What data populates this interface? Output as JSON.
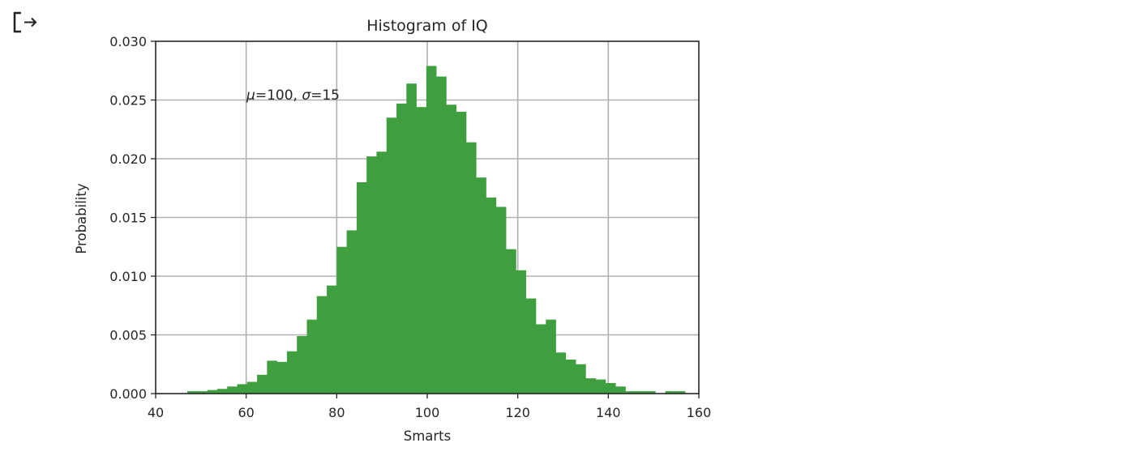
{
  "output_cell": {
    "icon": "output-redirect-icon"
  },
  "chart_data": {
    "type": "bar",
    "subtype": "histogram",
    "title": "Histogram of IQ",
    "xlabel": "Smarts",
    "ylabel": "Probability",
    "xlim": [
      40,
      160
    ],
    "ylim": [
      0,
      0.03
    ],
    "xticks": [
      "40",
      "60",
      "80",
      "100",
      "120",
      "140",
      "160"
    ],
    "yticks": [
      "0.000",
      "0.005",
      "0.010",
      "0.015",
      "0.020",
      "0.025",
      "0.030"
    ],
    "grid": true,
    "annotation": {
      "text": "μ = 100,  σ = 15",
      "mu": 100,
      "sigma": 15,
      "x": 60,
      "y": 0.025
    },
    "color": "#3f9f3f",
    "grid_color": "#b0b0b0",
    "bin_start": 47.0,
    "bin_width": 2.2,
    "num_bins": 50,
    "values": [
      0.0002,
      0.0002,
      0.0003,
      0.0004,
      0.0006,
      0.0008,
      0.001,
      0.0016,
      0.0028,
      0.0027,
      0.0036,
      0.0049,
      0.0063,
      0.0083,
      0.0092,
      0.0125,
      0.0139,
      0.018,
      0.0202,
      0.0206,
      0.0235,
      0.0247,
      0.0264,
      0.0244,
      0.0279,
      0.027,
      0.0246,
      0.024,
      0.0214,
      0.0184,
      0.0167,
      0.0159,
      0.0123,
      0.0105,
      0.0081,
      0.0059,
      0.0063,
      0.0035,
      0.0029,
      0.0025,
      0.0013,
      0.0012,
      0.0009,
      0.0006,
      0.0002,
      0.0002,
      0.0002,
      0.0,
      0.0002,
      0.0002
    ]
  }
}
